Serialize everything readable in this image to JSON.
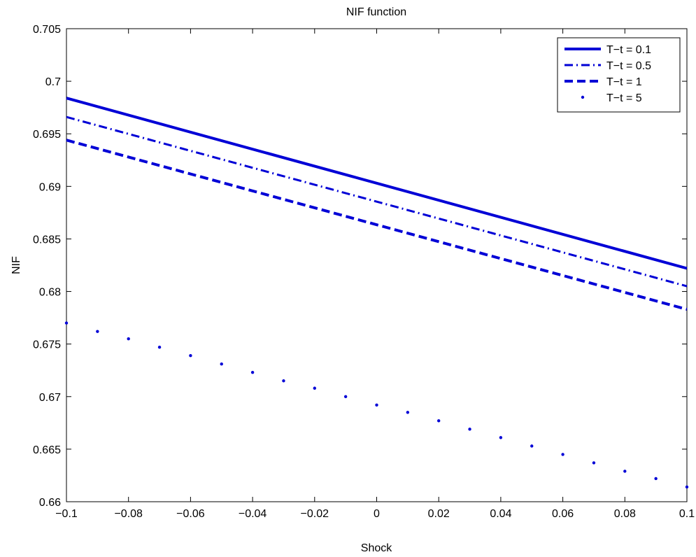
{
  "chart_data": {
    "type": "line",
    "title": "NIF function",
    "xlabel": "Shock",
    "ylabel": "NIF",
    "xlim": [
      -0.1,
      0.1
    ],
    "ylim": [
      0.66,
      0.705
    ],
    "xticks": [
      -0.1,
      -0.08,
      -0.06,
      -0.04,
      -0.02,
      0,
      0.02,
      0.04,
      0.06,
      0.08,
      0.1
    ],
    "xtick_labels": [
      "−0.1",
      "−0.08",
      "−0.06",
      "−0.04",
      "−0.02",
      "0",
      "0.02",
      "0.04",
      "0.06",
      "0.08",
      "0.1"
    ],
    "yticks": [
      0.66,
      0.665,
      0.67,
      0.675,
      0.68,
      0.685,
      0.69,
      0.695,
      0.7,
      0.705
    ],
    "ytick_labels": [
      "0.66",
      "0.665",
      "0.67",
      "0.675",
      "0.68",
      "0.685",
      "0.69",
      "0.695",
      "0.7",
      "0.705"
    ],
    "grid": false,
    "legend_position": "top-right",
    "color": "#0000d6",
    "series": [
      {
        "name": "T−t = 0.1",
        "style": "solid",
        "x": [
          -0.1,
          0.1
        ],
        "y": [
          0.6984,
          0.6822
        ]
      },
      {
        "name": "T−t = 0.5",
        "style": "dashdot",
        "x": [
          -0.1,
          0.1
        ],
        "y": [
          0.6966,
          0.6805
        ]
      },
      {
        "name": "T−t = 1",
        "style": "dashed",
        "x": [
          -0.1,
          0.1
        ],
        "y": [
          0.6944,
          0.6783
        ]
      },
      {
        "name": "T−t = 5",
        "style": "dotted",
        "x": [
          -0.1,
          -0.09,
          -0.08,
          -0.07,
          -0.06,
          -0.05,
          -0.04,
          -0.03,
          -0.02,
          -0.01,
          0,
          0.01,
          0.02,
          0.03,
          0.04,
          0.05,
          0.06,
          0.07,
          0.08,
          0.09,
          0.1
        ],
        "y": [
          0.677,
          0.6762,
          0.6755,
          0.6747,
          0.6739,
          0.6731,
          0.6723,
          0.6715,
          0.6708,
          0.67,
          0.6692,
          0.6685,
          0.6677,
          0.6669,
          0.6661,
          0.6653,
          0.6645,
          0.6637,
          0.6629,
          0.6622,
          0.6614
        ]
      }
    ]
  }
}
